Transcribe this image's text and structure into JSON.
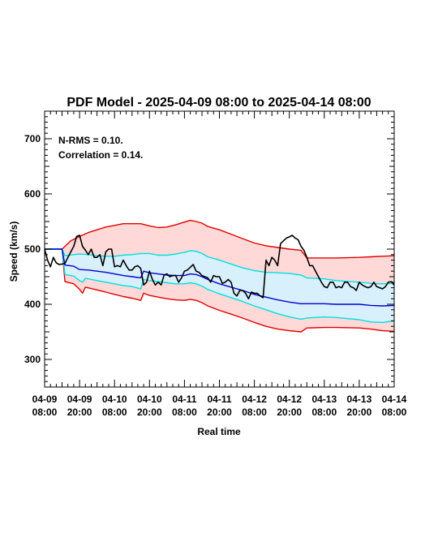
{
  "chart_data": {
    "type": "line",
    "title": "PDF Model - 2025-04-09 08:00 to 2025-04-14 08:00",
    "xlabel": "Real time",
    "ylabel": "Speed (km/s)",
    "xlim": [
      0,
      120
    ],
    "ylim": [
      250,
      750
    ],
    "yticks": [
      300,
      400,
      500,
      600,
      700
    ],
    "xticks": [
      {
        "at": 0,
        "date": "04-09",
        "time": "08:00"
      },
      {
        "at": 12,
        "date": "04-09",
        "time": "20:00"
      },
      {
        "at": 24,
        "date": "04-10",
        "time": "08:00"
      },
      {
        "at": 36,
        "date": "04-10",
        "time": "20:00"
      },
      {
        "at": 48,
        "date": "04-11",
        "time": "08:00"
      },
      {
        "at": 60,
        "date": "04-11",
        "time": "20:00"
      },
      {
        "at": 72,
        "date": "04-12",
        "time": "08:00"
      },
      {
        "at": 84,
        "date": "04-12",
        "time": "20:00"
      },
      {
        "at": 96,
        "date": "04-13",
        "time": "08:00"
      },
      {
        "at": 108,
        "date": "04-13",
        "time": "20:00"
      },
      {
        "at": 120,
        "date": "04-14",
        "time": "08:00"
      }
    ],
    "annotations": [
      "N-RMS = 0.10.",
      "Correlation = 0.14."
    ],
    "grid": false,
    "x_unit_note": "hours after 2025-04-09 08:00",
    "series": [
      {
        "role": "outer_upper",
        "color": "#e00000",
        "x": [
          0,
          6,
          7,
          9,
          12,
          15,
          18,
          21,
          24,
          27,
          30,
          33,
          36,
          39,
          42,
          45,
          48,
          50,
          52,
          54,
          56,
          60,
          64,
          68,
          72,
          76,
          80,
          84,
          88,
          90,
          96,
          100,
          108,
          112,
          116,
          120
        ],
        "values": [
          500,
          500,
          505,
          515,
          523,
          530,
          535,
          540,
          543,
          546,
          546,
          546,
          542,
          539,
          540,
          544,
          549,
          552,
          550,
          547,
          541,
          535,
          527,
          519,
          511,
          506,
          503,
          500,
          498,
          484,
          484,
          484,
          485,
          486,
          487,
          488
        ]
      },
      {
        "role": "inner_upper",
        "color": "#00e0e0",
        "x": [
          0,
          6,
          7,
          10,
          12,
          15,
          18,
          21,
          24,
          27,
          30,
          33,
          36,
          39,
          42,
          45,
          48,
          50,
          52,
          54,
          56,
          60,
          64,
          68,
          72,
          76,
          80,
          84,
          88,
          90,
          96,
          100,
          108,
          112,
          116,
          120
        ],
        "values": [
          500,
          500,
          488,
          490,
          491,
          490,
          488,
          487,
          487,
          489,
          490,
          492,
          492,
          489,
          489,
          491,
          494,
          497,
          496,
          492,
          486,
          480,
          473,
          466,
          461,
          458,
          457,
          456,
          453,
          448,
          446,
          443,
          440,
          438,
          437,
          438
        ]
      },
      {
        "role": "median",
        "color": "#0000d0",
        "x": [
          0,
          6,
          7,
          10,
          12,
          15,
          18,
          21,
          24,
          27,
          30,
          33,
          34,
          36,
          39,
          42,
          45,
          48,
          50,
          52,
          54,
          56,
          60,
          64,
          68,
          72,
          76,
          80,
          84,
          88,
          90,
          96,
          100,
          108,
          112,
          116,
          120
        ],
        "values": [
          500,
          500,
          471,
          469,
          463,
          462,
          460,
          458,
          455,
          452,
          450,
          448,
          460,
          457,
          455,
          453,
          452,
          452,
          455,
          454,
          450,
          445,
          437,
          431,
          425,
          418,
          413,
          408,
          404,
          401,
          401,
          401,
          400,
          400,
          398,
          397,
          398
        ]
      },
      {
        "role": "inner_lower",
        "color": "#00e0e0",
        "x": [
          0,
          6,
          7,
          10,
          12,
          13,
          14,
          18,
          21,
          24,
          27,
          30,
          33,
          34,
          36,
          39,
          42,
          45,
          48,
          50,
          52,
          54,
          56,
          60,
          64,
          68,
          72,
          76,
          80,
          84,
          88,
          90,
          96,
          100,
          108,
          112,
          116,
          120
        ],
        "values": [
          500,
          500,
          454,
          451,
          443,
          440,
          447,
          443,
          440,
          437,
          434,
          432,
          428,
          445,
          443,
          441,
          439,
          437,
          437,
          439,
          437,
          433,
          427,
          419,
          412,
          405,
          397,
          390,
          383,
          377,
          373,
          375,
          377,
          376,
          372,
          368,
          367,
          370
        ]
      },
      {
        "role": "outer_lower",
        "color": "#e00000",
        "x": [
          0,
          6,
          7,
          10,
          12,
          13,
          14,
          18,
          21,
          24,
          27,
          30,
          33,
          34,
          36,
          39,
          42,
          45,
          48,
          50,
          52,
          54,
          56,
          60,
          64,
          68,
          72,
          76,
          80,
          84,
          88,
          90,
          96,
          100,
          108,
          112,
          116,
          120
        ],
        "values": [
          500,
          500,
          441,
          437,
          427,
          420,
          431,
          426,
          422,
          418,
          414,
          411,
          407,
          420,
          416,
          413,
          410,
          408,
          407,
          409,
          407,
          403,
          397,
          389,
          382,
          375,
          367,
          360,
          355,
          352,
          350,
          357,
          358,
          358,
          357,
          355,
          352,
          351
        ]
      },
      {
        "role": "observed",
        "color": "#000000",
        "x": [
          0,
          1,
          2,
          3,
          4,
          5,
          6,
          7,
          8,
          9,
          10,
          11,
          12,
          13,
          14,
          15,
          16,
          17,
          18,
          19,
          20,
          21,
          22,
          23,
          24,
          25,
          26,
          27,
          28,
          29,
          30,
          31,
          32,
          33,
          34,
          35,
          36,
          37,
          38,
          39,
          40,
          41,
          42,
          43,
          44,
          45,
          46,
          47,
          48,
          49,
          50,
          51,
          52,
          53,
          54,
          55,
          56,
          57,
          58,
          59,
          60,
          61,
          62,
          63,
          64,
          65,
          66,
          67,
          68,
          69,
          70,
          71,
          72,
          73,
          74,
          75,
          76,
          77,
          78,
          79,
          80,
          81,
          82,
          83,
          84,
          85,
          86,
          87,
          88,
          89,
          90,
          91,
          92,
          93,
          94,
          95,
          96,
          97,
          98,
          99,
          100,
          101,
          102,
          103,
          104,
          105,
          106,
          107,
          108,
          109,
          110,
          111,
          112,
          113,
          114,
          115,
          116,
          117,
          118,
          119,
          120
        ],
        "values": [
          500,
          480,
          468,
          485,
          475,
          472,
          473,
          474,
          485,
          495,
          505,
          523,
          525,
          505,
          498,
          490,
          500,
          485,
          485,
          490,
          470,
          495,
          500,
          500,
          468,
          470,
          468,
          480,
          470,
          462,
          462,
          468,
          470,
          465,
          435,
          440,
          460,
          445,
          435,
          440,
          435,
          453,
          455,
          450,
          452,
          452,
          440,
          448,
          460,
          462,
          467,
          472,
          460,
          458,
          452,
          450,
          448,
          440,
          452,
          450,
          450,
          438,
          440,
          445,
          440,
          420,
          415,
          425,
          425,
          420,
          410,
          422,
          420,
          420,
          415,
          412,
          480,
          470,
          485,
          480,
          470,
          510,
          515,
          520,
          522,
          525,
          520,
          517,
          505,
          498,
          485,
          470,
          470,
          460,
          450,
          440,
          432,
          430,
          440,
          440,
          430,
          432,
          430,
          440,
          440,
          432,
          430,
          425,
          440,
          435,
          432,
          430,
          432,
          440,
          432,
          430,
          428,
          432,
          440,
          441,
          435
        ]
      }
    ]
  }
}
